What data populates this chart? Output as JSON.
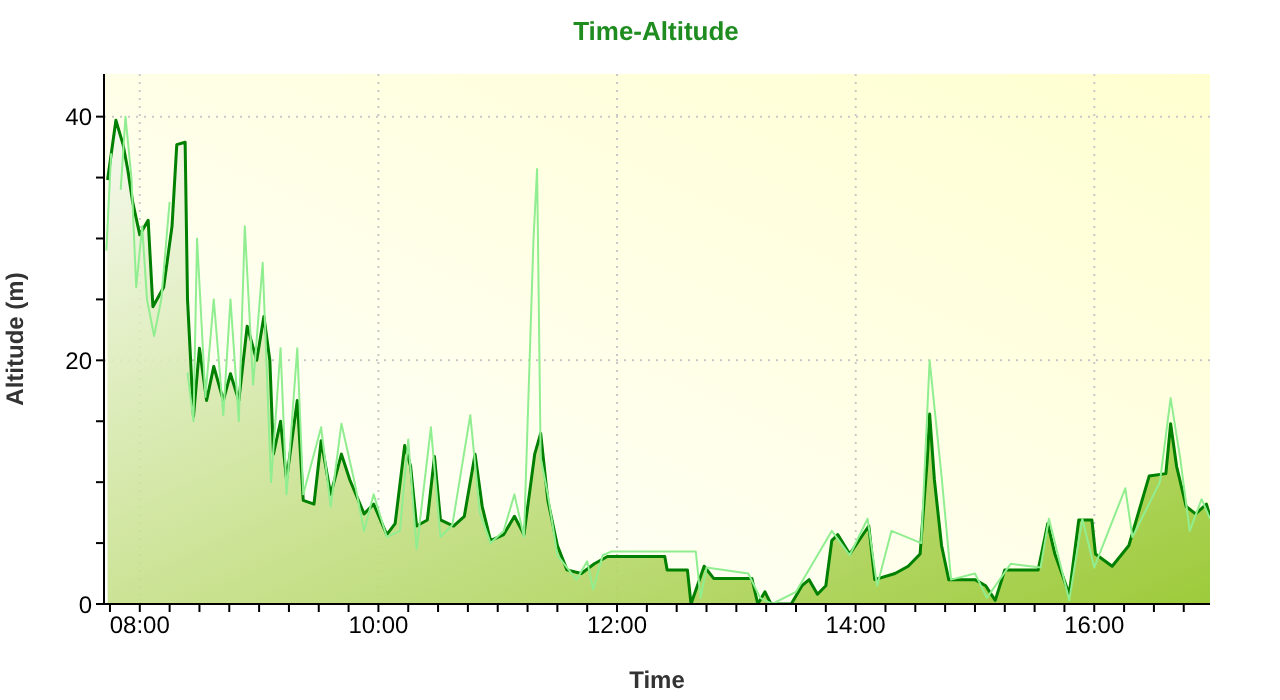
{
  "chart_data": {
    "type": "line",
    "title": "Time-Altitude",
    "xlabel": "Time",
    "ylabel": "Altitude (m)",
    "xlim": [
      7.7,
      16.97
    ],
    "ylim": [
      0,
      43.5
    ],
    "xticks": [
      {
        "value": 7.75,
        "label": null
      },
      {
        "value": 8,
        "label": "08:00"
      },
      {
        "value": 8.25,
        "label": null
      },
      {
        "value": 8.5,
        "label": null
      },
      {
        "value": 8.75,
        "label": null
      },
      {
        "value": 9,
        "label": null
      },
      {
        "value": 9.25,
        "label": null
      },
      {
        "value": 9.5,
        "label": null
      },
      {
        "value": 9.75,
        "label": null
      },
      {
        "value": 10,
        "label": "10:00"
      },
      {
        "value": 10.25,
        "label": null
      },
      {
        "value": 10.5,
        "label": null
      },
      {
        "value": 10.75,
        "label": null
      },
      {
        "value": 11,
        "label": null
      },
      {
        "value": 11.25,
        "label": null
      },
      {
        "value": 11.5,
        "label": null
      },
      {
        "value": 11.75,
        "label": null
      },
      {
        "value": 12,
        "label": "12:00"
      },
      {
        "value": 12.25,
        "label": null
      },
      {
        "value": 12.5,
        "label": null
      },
      {
        "value": 12.75,
        "label": null
      },
      {
        "value": 13,
        "label": null
      },
      {
        "value": 13.25,
        "label": null
      },
      {
        "value": 13.5,
        "label": null
      },
      {
        "value": 13.75,
        "label": null
      },
      {
        "value": 14,
        "label": "14:00"
      },
      {
        "value": 14.25,
        "label": null
      },
      {
        "value": 14.5,
        "label": null
      },
      {
        "value": 14.75,
        "label": null
      },
      {
        "value": 15,
        "label": null
      },
      {
        "value": 15.25,
        "label": null
      },
      {
        "value": 15.5,
        "label": null
      },
      {
        "value": 15.75,
        "label": null
      },
      {
        "value": 16,
        "label": "16:00"
      },
      {
        "value": 16.25,
        "label": null
      },
      {
        "value": 16.5,
        "label": null
      },
      {
        "value": 16.75,
        "label": null
      }
    ],
    "yticks": [
      0,
      {
        "value": 5,
        "label": null
      },
      {
        "value": 10,
        "label": null
      },
      {
        "value": 15,
        "label": null
      },
      20,
      {
        "value": 25,
        "label": null
      },
      {
        "value": 30,
        "label": null
      },
      {
        "value": 35,
        "label": null
      },
      40
    ],
    "grid": true,
    "legend": false,
    "marker": "none",
    "line_style": "solid",
    "series": [
      {
        "color": "#90ee90",
        "x": [
          7.72,
          7.76,
          7.8,
          7.84,
          7.88,
          7.93,
          7.97,
          8.02,
          8.06,
          8.12,
          8.18,
          8.25,
          8.3,
          8.35,
          8.4,
          8.45,
          8.48,
          8.55,
          8.62,
          8.7,
          8.76,
          8.83,
          8.88,
          8.95,
          9.03,
          9.1,
          9.18,
          9.23,
          9.32,
          9.37,
          9.52,
          9.6,
          9.69,
          9.8,
          9.88,
          9.96,
          10.07,
          10.18,
          10.25,
          10.32,
          10.44,
          10.52,
          10.62,
          10.77,
          10.85,
          10.94,
          11.05,
          11.14,
          11.22,
          11.3,
          11.33,
          11.36,
          11.42,
          11.5,
          11.66,
          11.75,
          11.8,
          11.88,
          11.95,
          12.66,
          12.7,
          12.75,
          13.1,
          13.2,
          13.3,
          13.5,
          13.8,
          13.95,
          14.1,
          14.18,
          14.3,
          14.55,
          14.62,
          14.72,
          14.8,
          15,
          15.1,
          15.3,
          15.55,
          15.62,
          15.79,
          15.9,
          16,
          16.26,
          16.32,
          16.55,
          16.64,
          16.72,
          16.8,
          16.9,
          16.97
        ],
        "values": [
          29,
          37,
          null,
          34,
          40,
          35,
          26,
          31,
          25,
          22,
          25,
          33,
          null,
          null,
          19,
          15,
          30,
          17,
          25,
          15.5,
          25,
          15,
          31,
          18,
          28,
          10,
          21,
          9,
          21,
          9,
          14.5,
          8,
          14.8,
          10,
          6,
          9,
          5.5,
          6,
          13.5,
          4.5,
          14.5,
          5.5,
          6.5,
          15.5,
          7.5,
          5,
          6,
          9,
          5.5,
          30,
          35.7,
          12,
          9,
          4,
          2,
          3.5,
          1.2,
          4,
          4.3,
          4.3,
          0.5,
          3,
          2.5,
          0.5,
          0,
          1,
          6,
          4,
          7,
          1.5,
          6,
          5,
          20,
          10.5,
          2,
          2.5,
          0.5,
          3.3,
          3,
          7,
          0.3,
          7,
          3,
          9.5,
          5.5,
          10,
          16.9,
          12,
          6,
          8.6,
          7
        ]
      },
      {
        "type": "area",
        "color": "#008000",
        "x": [
          7.73,
          7.8,
          7.86,
          7.9,
          7.94,
          8,
          8.07,
          8.11,
          8.2,
          8.27,
          8.31,
          8.38,
          8.4,
          8.45,
          8.5,
          8.56,
          8.62,
          8.7,
          8.76,
          8.83,
          8.9,
          8.98,
          9.04,
          9.09,
          9.12,
          9.18,
          9.23,
          9.32,
          9.37,
          9.46,
          9.52,
          9.6,
          9.69,
          9.76,
          9.88,
          9.96,
          10.07,
          10.14,
          10.22,
          10.27,
          10.32,
          10.41,
          10.47,
          10.52,
          10.63,
          10.72,
          10.81,
          10.87,
          10.94,
          11.05,
          11.14,
          11.22,
          11.31,
          11.36,
          11.42,
          11.5,
          11.58,
          11.7,
          11.81,
          11.92,
          12.4,
          12.42,
          12.59,
          12.62,
          12.73,
          12.81,
          13.13,
          13.18,
          13.24,
          13.29,
          13.46,
          13.55,
          13.61,
          13.68,
          13.75,
          13.8,
          13.85,
          13.95,
          14.11,
          14.16,
          14.33,
          14.44,
          14.54,
          14.6,
          14.62,
          14.66,
          14.72,
          14.78,
          15,
          15.09,
          15.17,
          15.25,
          15.53,
          15.61,
          15.67,
          15.79,
          15.87,
          15.98,
          16.01,
          16.15,
          16.29,
          16.46,
          16.6,
          16.64,
          16.69,
          16.77,
          16.85,
          16.94,
          16.97
        ],
        "values": [
          34.8,
          39.7,
          37.7,
          35.6,
          33,
          30.3,
          31.5,
          24.4,
          26,
          31,
          37.7,
          37.9,
          25,
          15.4,
          21,
          16.7,
          19.5,
          16.7,
          18.9,
          16.7,
          22.8,
          20,
          23.6,
          20,
          12.3,
          15,
          10.2,
          16.7,
          8.5,
          8.2,
          13.4,
          9,
          12.3,
          10.2,
          7.4,
          8.2,
          5.7,
          6.6,
          13,
          11.3,
          6.4,
          6.9,
          12.1,
          6.9,
          6.4,
          7.2,
          12.3,
          8,
          5.2,
          5.7,
          7.2,
          5.7,
          12.3,
          14,
          8.5,
          4.8,
          2.8,
          2.5,
          3.3,
          3.9,
          3.9,
          2.8,
          2.8,
          0,
          3.1,
          2.1,
          2.1,
          0,
          1,
          0,
          0,
          1.5,
          2,
          0.8,
          1.5,
          5.2,
          5.7,
          4.1,
          6.4,
          2,
          2.5,
          3.1,
          4.1,
          11.8,
          15.6,
          10.2,
          4.8,
          2,
          2,
          1.5,
          0.3,
          2.8,
          2.8,
          6.6,
          4.1,
          0.8,
          6.9,
          6.9,
          4.1,
          3.1,
          4.8,
          10.5,
          10.7,
          14.8,
          11.3,
          8,
          7.4,
          8.2,
          7.2
        ]
      }
    ]
  }
}
